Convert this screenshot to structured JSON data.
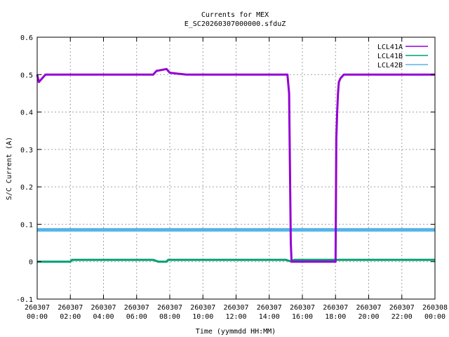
{
  "chart_data": {
    "type": "line",
    "title": "Currents for MEX",
    "subtitle": "E_SC20260307000000.sfduZ",
    "xlabel": "Time (yymmdd HH:MM)",
    "ylabel": "S/C Current (A)",
    "xlim_hours": [
      0,
      24
    ],
    "ylim": [
      -0.1,
      0.6
    ],
    "grid": true,
    "legend_position": "top-right",
    "y_ticks": [
      "-0.1",
      "0",
      "0.1",
      "0.2",
      "0.3",
      "0.4",
      "0.5",
      "0.6"
    ],
    "x_ticks": [
      {
        "hour": 0,
        "date": "260307",
        "time": "00:00"
      },
      {
        "hour": 2,
        "date": "260307",
        "time": "02:00"
      },
      {
        "hour": 4,
        "date": "260307",
        "time": "04:00"
      },
      {
        "hour": 6,
        "date": "260307",
        "time": "06:00"
      },
      {
        "hour": 8,
        "date": "260307",
        "time": "08:00"
      },
      {
        "hour": 10,
        "date": "260307",
        "time": "10:00"
      },
      {
        "hour": 12,
        "date": "260307",
        "time": "12:00"
      },
      {
        "hour": 14,
        "date": "260307",
        "time": "14:00"
      },
      {
        "hour": 16,
        "date": "260307",
        "time": "16:00"
      },
      {
        "hour": 18,
        "date": "260307",
        "time": "18:00"
      },
      {
        "hour": 20,
        "date": "260307",
        "time": "20:00"
      },
      {
        "hour": 22,
        "date": "260307",
        "time": "22:00"
      },
      {
        "hour": 24,
        "date": "260308",
        "time": "00:00"
      }
    ],
    "series": [
      {
        "name": "LCL41A",
        "color": "#9400d3",
        "points": [
          [
            0.0,
            0.5
          ],
          [
            0.1,
            0.48
          ],
          [
            0.5,
            0.5
          ],
          [
            1.0,
            0.5
          ],
          [
            2.0,
            0.5
          ],
          [
            3.0,
            0.5
          ],
          [
            4.0,
            0.5
          ],
          [
            5.0,
            0.5
          ],
          [
            6.0,
            0.5
          ],
          [
            7.0,
            0.5
          ],
          [
            7.2,
            0.51
          ],
          [
            7.8,
            0.515
          ],
          [
            8.0,
            0.505
          ],
          [
            9.0,
            0.5
          ],
          [
            10.0,
            0.5
          ],
          [
            11.0,
            0.5
          ],
          [
            12.0,
            0.5
          ],
          [
            13.0,
            0.5
          ],
          [
            14.0,
            0.5
          ],
          [
            15.0,
            0.5
          ],
          [
            15.1,
            0.5
          ],
          [
            15.2,
            0.45
          ],
          [
            15.3,
            0.05
          ],
          [
            15.35,
            0.0
          ],
          [
            16.0,
            0.0
          ],
          [
            17.0,
            0.0
          ],
          [
            17.9,
            0.0
          ],
          [
            18.0,
            0.0
          ],
          [
            18.05,
            0.33
          ],
          [
            18.1,
            0.4
          ],
          [
            18.15,
            0.45
          ],
          [
            18.2,
            0.48
          ],
          [
            18.3,
            0.49
          ],
          [
            18.5,
            0.5
          ],
          [
            19.0,
            0.5
          ],
          [
            20.0,
            0.5
          ],
          [
            21.0,
            0.5
          ],
          [
            22.0,
            0.5
          ],
          [
            23.0,
            0.5
          ],
          [
            24.0,
            0.5
          ]
        ]
      },
      {
        "name": "LCL41B",
        "color": "#009e73",
        "points": [
          [
            0.0,
            0.0
          ],
          [
            1.0,
            0.0
          ],
          [
            2.0,
            0.0
          ],
          [
            2.1,
            0.005
          ],
          [
            4.0,
            0.005
          ],
          [
            6.0,
            0.005
          ],
          [
            7.0,
            0.005
          ],
          [
            7.3,
            0.0
          ],
          [
            7.8,
            0.0
          ],
          [
            7.9,
            0.005
          ],
          [
            9.0,
            0.005
          ],
          [
            10.0,
            0.005
          ],
          [
            12.0,
            0.005
          ],
          [
            14.0,
            0.005
          ],
          [
            15.0,
            0.005
          ],
          [
            15.35,
            0.0
          ],
          [
            15.5,
            0.005
          ],
          [
            16.0,
            0.005
          ],
          [
            17.0,
            0.005
          ],
          [
            18.0,
            0.005
          ],
          [
            20.0,
            0.005
          ],
          [
            22.0,
            0.005
          ],
          [
            24.0,
            0.005
          ]
        ]
      },
      {
        "name": "LCL42B",
        "color": "#56b4e9",
        "points": [
          [
            0.0,
            0.085
          ],
          [
            4.0,
            0.085
          ],
          [
            8.0,
            0.085
          ],
          [
            12.0,
            0.085
          ],
          [
            16.0,
            0.085
          ],
          [
            20.0,
            0.085
          ],
          [
            24.0,
            0.085
          ]
        ]
      }
    ]
  }
}
